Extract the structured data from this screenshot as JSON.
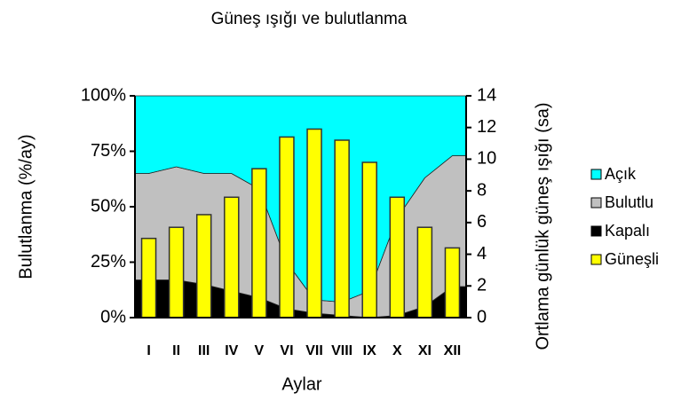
{
  "chart_data": {
    "type": "stacked-area-bar",
    "title": "Güneş ışığı ve bulutlanma",
    "xlabel": "Aylar",
    "ylabel": "Bulutlanma (%/ay)",
    "y2label": "Ortlama günlük güneş ışığı (sa)",
    "categories": [
      "I",
      "II",
      "III",
      "IV",
      "V",
      "VI",
      "VII",
      "VIII",
      "IX",
      "X",
      "XI",
      "XII"
    ],
    "ylim": [
      0,
      100
    ],
    "yticks": [
      {
        "value": 0,
        "label": "0%"
      },
      {
        "value": 25,
        "label": "25%"
      },
      {
        "value": 50,
        "label": "50%"
      },
      {
        "value": 75,
        "label": "75%"
      },
      {
        "value": 100,
        "label": "100%"
      }
    ],
    "y2lim": [
      0,
      14
    ],
    "y2ticks": [
      0,
      2,
      4,
      6,
      8,
      10,
      12,
      14
    ],
    "series": [
      {
        "name": "Açık",
        "color": "#00ffff",
        "values": [
          35,
          32,
          35,
          35,
          42,
          75,
          92,
          93,
          88,
          55,
          37,
          27
        ]
      },
      {
        "name": "Bulutlu",
        "color": "#c0c0c0",
        "values": [
          48,
          51,
          50,
          53,
          49,
          21,
          6,
          6,
          12,
          44,
          58,
          59
        ]
      },
      {
        "name": "Kapalı",
        "color": "#000000",
        "values": [
          17,
          17,
          15,
          12,
          9,
          4,
          2,
          1,
          0,
          1,
          5,
          14
        ]
      },
      {
        "name": "Güneşli",
        "color": "#ffff00",
        "axis": "y2",
        "values": [
          5.0,
          5.7,
          6.5,
          7.6,
          9.4,
          11.4,
          11.9,
          11.2,
          9.8,
          7.6,
          5.7,
          4.4
        ]
      }
    ]
  }
}
